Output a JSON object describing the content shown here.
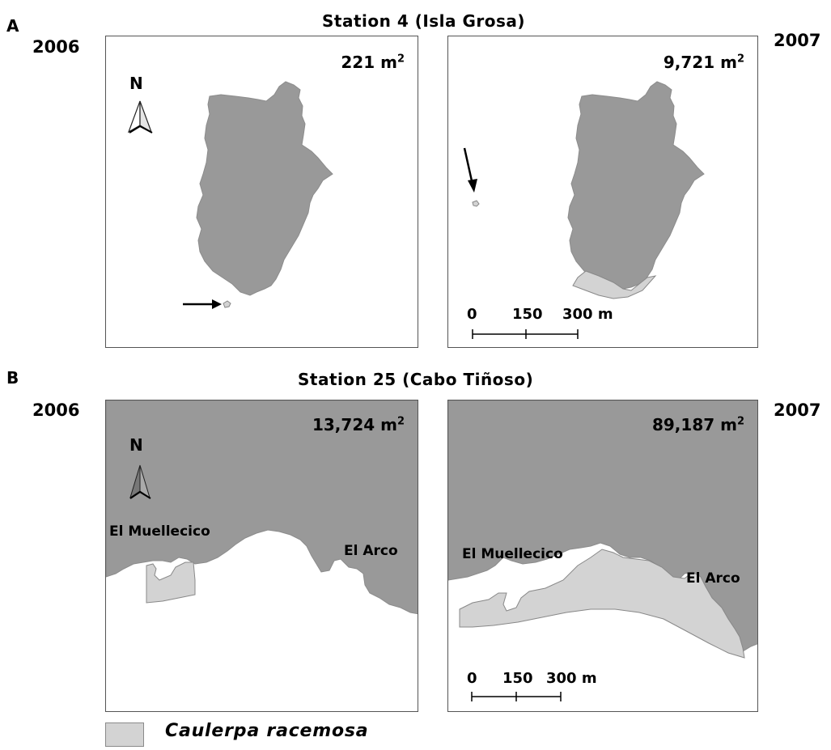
{
  "panel_a": {
    "letter": "A",
    "title": "Station 4 (Isla Grosa)",
    "year_left": "2006",
    "year_right": "2007",
    "map_2006": {
      "area_value": "221 m",
      "area_exp": "2",
      "north": "N"
    },
    "map_2007": {
      "area_value": "9,721 m",
      "area_exp": "2",
      "scale": {
        "zero": "0",
        "mid": "150",
        "end": "300 m"
      }
    }
  },
  "panel_b": {
    "letter": "B",
    "title": "Station 25 (Cabo Tiñoso)",
    "year_left": "2006",
    "year_right": "2007",
    "map_2006": {
      "area_value": "13,724 m",
      "area_exp": "2",
      "north": "N",
      "place_1": "El Muellecico",
      "place_2": "El Arco"
    },
    "map_2007": {
      "area_value": "89,187 m",
      "area_exp": "2",
      "place_1": "El Muellecico",
      "place_2": "El Arco",
      "scale": {
        "zero": "0",
        "mid": "150",
        "end": "300 m"
      }
    }
  },
  "legend": {
    "label": "Caulerpa racemosa"
  },
  "colors": {
    "land": "#999999",
    "caulerpa": "#d3d3d3",
    "outline": "#888888"
  }
}
